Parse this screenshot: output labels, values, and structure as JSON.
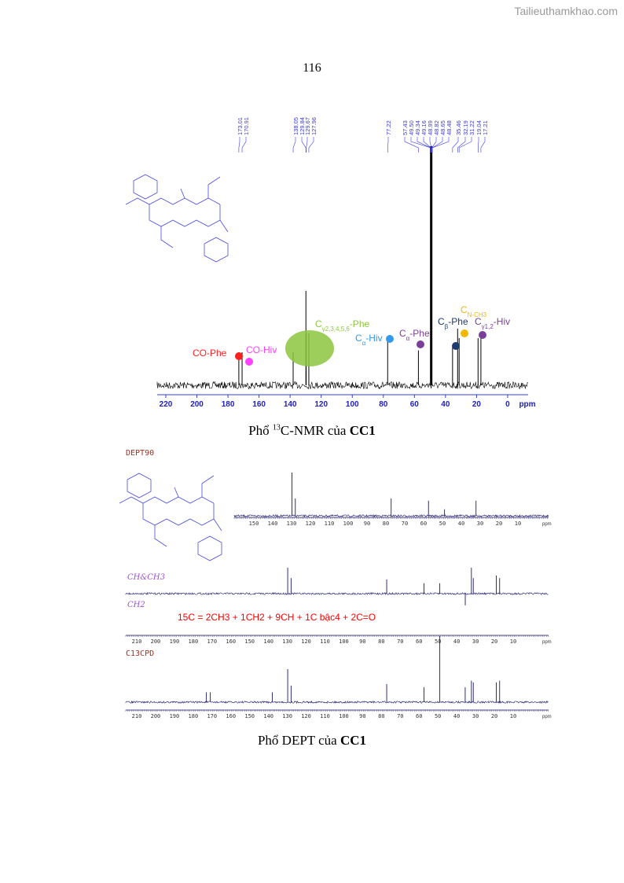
{
  "watermark": "Tailieuthamkhao.com",
  "page_number": "116",
  "figure1": {
    "caption_pre": "Phổ ",
    "caption_sup": "13",
    "caption_mid": "C-NMR của ",
    "caption_bold": "CC1"
  },
  "figure2": {
    "caption_pre": "Phổ  DEPT của ",
    "caption_bold": "CC1"
  },
  "dept": {
    "label_dept90": "DEPT90",
    "label_chch3": "CH&CH3",
    "label_ch2": "CH2",
    "label_c13cpd": "C13CPD",
    "formula": "15C = 2CH3 + 1CH2 + 9CH + 1C bậc4 + 2C=O",
    "formula_color": "#ff0000"
  },
  "chart_data": [
    {
      "type": "line",
      "name": "13C-NMR",
      "xlabel": "ppm",
      "xlim": [
        225,
        -12
      ],
      "xticks": [
        220,
        200,
        180,
        160,
        140,
        120,
        100,
        80,
        60,
        40,
        20,
        0
      ],
      "peak_labels": [
        "173.01",
        "170.91",
        "138.05",
        "129.84",
        "129.67",
        "127.96",
        "77.22",
        "57.43",
        "49.50",
        "49.34",
        "49.16",
        "48.99",
        "48.82",
        "48.65",
        "48.48",
        "35.46",
        "32.19",
        "31.22",
        "19.04",
        "17.21"
      ],
      "peaks": [
        [
          173.01,
          0.35
        ],
        [
          170.91,
          0.35
        ],
        [
          138.05,
          0.35
        ],
        [
          129.84,
          1.0
        ],
        [
          129.67,
          0.55
        ],
        [
          127.96,
          0.55
        ],
        [
          77.22,
          0.5
        ],
        [
          57.43,
          0.37
        ],
        [
          49.2,
          2.6
        ],
        [
          35.46,
          0.4
        ],
        [
          32.19,
          0.6
        ],
        [
          31.22,
          0.5
        ],
        [
          19.04,
          0.5
        ],
        [
          17.21,
          0.55
        ]
      ],
      "assignments": [
        {
          "label": "CO-Phe",
          "ppm": 173.01,
          "color": "#ff2020"
        },
        {
          "label": "CO-Hiv",
          "ppm": 168,
          "color": "#ff40ff"
        },
        {
          "label": "C",
          "sub": "γ2,3,4,5,6",
          "suffix": "-Phe",
          "ppm": 130,
          "color": "#8cc63f"
        },
        {
          "label": "C",
          "sub": "α",
          "suffix": "-Hiv",
          "ppm": 77.22,
          "color": "#3399ee"
        },
        {
          "label": "C",
          "sub": "α",
          "suffix": "-Phe",
          "ppm": 57.43,
          "color": "#7a3f9a"
        },
        {
          "label": "C",
          "sub": "β",
          "suffix": "-Phe",
          "ppm": 35.46,
          "color": "#1f3a6e"
        },
        {
          "label": "C",
          "sub": "N-CH3",
          "suffix": "",
          "ppm": 29,
          "color": "#f5b800"
        },
        {
          "label": "C",
          "sub": "γ1,2",
          "suffix": "-Hiv",
          "ppm": 17.21,
          "color": "#7a3f9a"
        }
      ]
    },
    {
      "type": "line",
      "name": "DEPT90",
      "xlabel": "ppm",
      "xticks": [
        150,
        140,
        130,
        120,
        110,
        100,
        90,
        80,
        70,
        60,
        50,
        40,
        30,
        20,
        10
      ],
      "peaks": [
        [
          129.8,
          1.0
        ],
        [
          128,
          0.4
        ],
        [
          77.2,
          0.4
        ],
        [
          57.4,
          0.35
        ],
        [
          48.9,
          0.15
        ],
        [
          32.2,
          0.35
        ]
      ]
    },
    {
      "type": "line",
      "name": "CH&CH3 / CH2",
      "xlabel": "ppm",
      "xticks": [
        210,
        200,
        190,
        180,
        170,
        160,
        150,
        140,
        130,
        120,
        110,
        100,
        90,
        80,
        70,
        60,
        50,
        40,
        30,
        20,
        10
      ],
      "peaks": [
        [
          129.8,
          1.0
        ],
        [
          128,
          0.6
        ],
        [
          77.2,
          0.55
        ],
        [
          57.4,
          0.4
        ],
        [
          49,
          0.4
        ],
        [
          35.46,
          -0.45
        ],
        [
          32.2,
          1.0
        ],
        [
          31.2,
          0.6
        ],
        [
          19,
          0.7
        ],
        [
          17.2,
          0.6
        ]
      ]
    },
    {
      "type": "line",
      "name": "C13CPD",
      "xlabel": "ppm",
      "xticks": [
        210,
        200,
        190,
        180,
        170,
        160,
        150,
        140,
        130,
        120,
        110,
        100,
        90,
        80,
        70,
        60,
        50,
        40,
        30,
        20,
        10
      ],
      "peaks": [
        [
          173,
          0.3
        ],
        [
          170.9,
          0.3
        ],
        [
          138,
          0.3
        ],
        [
          129.8,
          1.0
        ],
        [
          128,
          0.5
        ],
        [
          77.2,
          0.55
        ],
        [
          57.4,
          0.45
        ],
        [
          49,
          2.0
        ],
        [
          35.5,
          0.45
        ],
        [
          32.2,
          0.65
        ],
        [
          31.2,
          0.6
        ],
        [
          19,
          0.6
        ],
        [
          17.2,
          0.65
        ]
      ]
    }
  ]
}
